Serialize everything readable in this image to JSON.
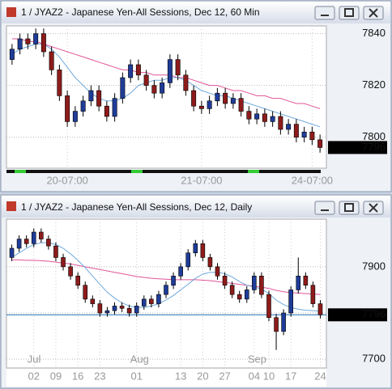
{
  "chart_data": [
    {
      "type": "candlestick",
      "title": "1 / JYAZ2 - Japanese Yen-All Sessions, Dec 12, 60 Min",
      "categories": [
        null,
        null,
        null,
        null,
        null,
        null,
        null,
        "20-07:00",
        null,
        null,
        null,
        null,
        null,
        null,
        null,
        null,
        null,
        null,
        null,
        null,
        null,
        null,
        null,
        null,
        "21-07:00",
        null,
        null,
        null,
        null,
        null,
        null,
        null,
        null,
        null,
        null,
        null,
        null,
        null,
        "24-07:00",
        null
      ],
      "open": [
        7830,
        7834,
        7838,
        7836,
        7840,
        7833,
        7826,
        7816,
        7806,
        7810,
        7814,
        7818,
        7812,
        7808,
        7815,
        7823,
        7828,
        7824,
        7820,
        7817,
        7821,
        7830,
        7824,
        7818,
        7812,
        7811,
        7814,
        7817,
        7813,
        7815,
        7810,
        7807,
        7809,
        7806,
        7808,
        7803,
        7805,
        7800,
        7802,
        7799
      ],
      "high": [
        7836,
        7840,
        7840,
        7842,
        7842,
        7835,
        7828,
        7818,
        7812,
        7816,
        7820,
        7820,
        7814,
        7817,
        7825,
        7830,
        7830,
        7826,
        7822,
        7823,
        7832,
        7832,
        7826,
        7820,
        7814,
        7816,
        7819,
        7819,
        7817,
        7817,
        7812,
        7811,
        7811,
        7810,
        7810,
        7807,
        7807,
        7804,
        7804,
        7801
      ],
      "low": [
        7828,
        7832,
        7834,
        7834,
        7831,
        7824,
        7814,
        7804,
        7804,
        7808,
        7812,
        7810,
        7806,
        7806,
        7813,
        7821,
        7822,
        7818,
        7815,
        7815,
        7819,
        7822,
        7816,
        7810,
        7809,
        7809,
        7812,
        7811,
        7811,
        7808,
        7805,
        7805,
        7804,
        7804,
        7801,
        7801,
        7798,
        7798,
        7797,
        7794
      ],
      "close": [
        7834,
        7838,
        7836,
        7840,
        7833,
        7826,
        7816,
        7806,
        7810,
        7814,
        7818,
        7812,
        7808,
        7815,
        7823,
        7828,
        7824,
        7820,
        7817,
        7821,
        7830,
        7824,
        7818,
        7812,
        7811,
        7814,
        7817,
        7813,
        7815,
        7810,
        7807,
        7809,
        7806,
        7808,
        7803,
        7805,
        7800,
        7802,
        7799,
        7796
      ],
      "series": [
        {
          "color": "#e0559a",
          "values": [
            7838,
            7838,
            7837,
            7837,
            7836,
            7835,
            7834,
            7833,
            7832,
            7831,
            7830,
            7829,
            7828,
            7827,
            7826,
            7826,
            7825,
            7825,
            7824,
            7824,
            7824,
            7823,
            7823,
            7822,
            7821,
            7820,
            7820,
            7819,
            7818,
            7818,
            7817,
            7816,
            7816,
            7815,
            7815,
            7814,
            7813,
            7813,
            7812,
            7811
          ]
        },
        {
          "color": "#6fa8dc",
          "values": [
            7832,
            7834,
            7835,
            7836,
            7836,
            7834,
            7831,
            7827,
            7823,
            7820,
            7817,
            7815,
            7814,
            7814,
            7815,
            7817,
            7820,
            7821,
            7822,
            7822,
            7823,
            7823,
            7822,
            7820,
            7818,
            7817,
            7816,
            7816,
            7815,
            7814,
            7813,
            7812,
            7811,
            7810,
            7809,
            7808,
            7807,
            7806,
            7805,
            7804
          ]
        }
      ],
      "up_color": "#1f3c99",
      "down_color": "#8e1b1b",
      "ylim": [
        7788,
        7843
      ],
      "yticks": [
        7800,
        7820,
        7840
      ],
      "grid": true,
      "last_price": 7796
    },
    {
      "type": "candlestick",
      "title": "1 / JYAZ2 - Japanese Yen-All Sessions, Dec 12, Daily",
      "months": [
        null,
        null,
        null,
        "Jul",
        null,
        null,
        null,
        null,
        null,
        null,
        null,
        null,
        null,
        null,
        null,
        null,
        null,
        "Aug",
        null,
        null,
        null,
        null,
        null,
        null,
        null,
        null,
        null,
        null,
        null,
        null,
        null,
        null,
        null,
        "Sep",
        null,
        null,
        null,
        null,
        null,
        null,
        null,
        null,
        null
      ],
      "categories": [
        null,
        null,
        null,
        "02",
        null,
        null,
        "09",
        null,
        null,
        "16",
        null,
        null,
        "23",
        null,
        null,
        null,
        null,
        "01",
        null,
        null,
        null,
        null,
        null,
        "13",
        null,
        null,
        "20",
        null,
        null,
        "27",
        null,
        null,
        null,
        "04",
        null,
        "10",
        null,
        null,
        "17",
        null,
        null,
        null,
        "24"
      ],
      "open": [
        7920,
        7940,
        7960,
        7950,
        7975,
        7960,
        7945,
        7920,
        7900,
        7880,
        7860,
        7830,
        7820,
        7800,
        7805,
        7815,
        7810,
        7800,
        7815,
        7830,
        7820,
        7840,
        7860,
        7880,
        7900,
        7930,
        7950,
        7920,
        7900,
        7880,
        7860,
        7840,
        7830,
        7850,
        7880,
        7840,
        7790,
        7760,
        7800,
        7850,
        7880,
        7860,
        7820
      ],
      "high": [
        7948,
        7968,
        7968,
        7983,
        7983,
        7968,
        7953,
        7928,
        7908,
        7888,
        7868,
        7838,
        7828,
        7813,
        7823,
        7823,
        7818,
        7823,
        7838,
        7838,
        7848,
        7868,
        7888,
        7908,
        7938,
        7958,
        7958,
        7928,
        7908,
        7888,
        7868,
        7848,
        7858,
        7888,
        7888,
        7848,
        7798,
        7808,
        7858,
        7920,
        7888,
        7868,
        7828
      ],
      "low": [
        7912,
        7932,
        7942,
        7942,
        7952,
        7937,
        7912,
        7892,
        7872,
        7852,
        7822,
        7812,
        7792,
        7792,
        7797,
        7802,
        7792,
        7792,
        7807,
        7812,
        7812,
        7832,
        7852,
        7872,
        7892,
        7922,
        7912,
        7892,
        7872,
        7852,
        7832,
        7822,
        7822,
        7842,
        7832,
        7782,
        7720,
        7752,
        7792,
        7842,
        7852,
        7812,
        7788
      ],
      "close": [
        7940,
        7960,
        7950,
        7975,
        7960,
        7945,
        7920,
        7900,
        7880,
        7860,
        7830,
        7820,
        7800,
        7805,
        7815,
        7810,
        7800,
        7815,
        7830,
        7820,
        7840,
        7860,
        7880,
        7900,
        7930,
        7950,
        7920,
        7900,
        7880,
        7860,
        7840,
        7830,
        7850,
        7880,
        7840,
        7790,
        7760,
        7800,
        7850,
        7880,
        7860,
        7820,
        7796
      ],
      "series": [
        {
          "color": "#e0559a",
          "values": [
            7915,
            7915,
            7914,
            7914,
            7913,
            7912,
            7910,
            7908,
            7906,
            7903,
            7900,
            7897,
            7894,
            7891,
            7888,
            7885,
            7882,
            7879,
            7877,
            7875,
            7874,
            7873,
            7872,
            7872,
            7872,
            7872,
            7871,
            7870,
            7868,
            7866,
            7864,
            7862,
            7860,
            7858,
            7856,
            7853,
            7849,
            7846,
            7844,
            7843,
            7842,
            7841,
            7840
          ]
        },
        {
          "color": "#6fa8dc",
          "values": [
            7920,
            7930,
            7940,
            7948,
            7952,
            7952,
            7948,
            7940,
            7928,
            7914,
            7898,
            7880,
            7862,
            7845,
            7832,
            7822,
            7815,
            7812,
            7812,
            7815,
            7820,
            7828,
            7838,
            7850,
            7862,
            7875,
            7884,
            7888,
            7888,
            7885,
            7878,
            7868,
            7860,
            7856,
            7852,
            7842,
            7828,
            7818,
            7812,
            7808,
            7806,
            7805,
            7804
          ]
        }
      ],
      "up_color": "#1f3c99",
      "down_color": "#8e1b1b",
      "ylim": [
        7681,
        8003
      ],
      "yticks": [
        7700,
        7800,
        7900
      ],
      "grid": true,
      "last_price": 7796,
      "price_line_color": "#1f6fb5"
    }
  ]
}
